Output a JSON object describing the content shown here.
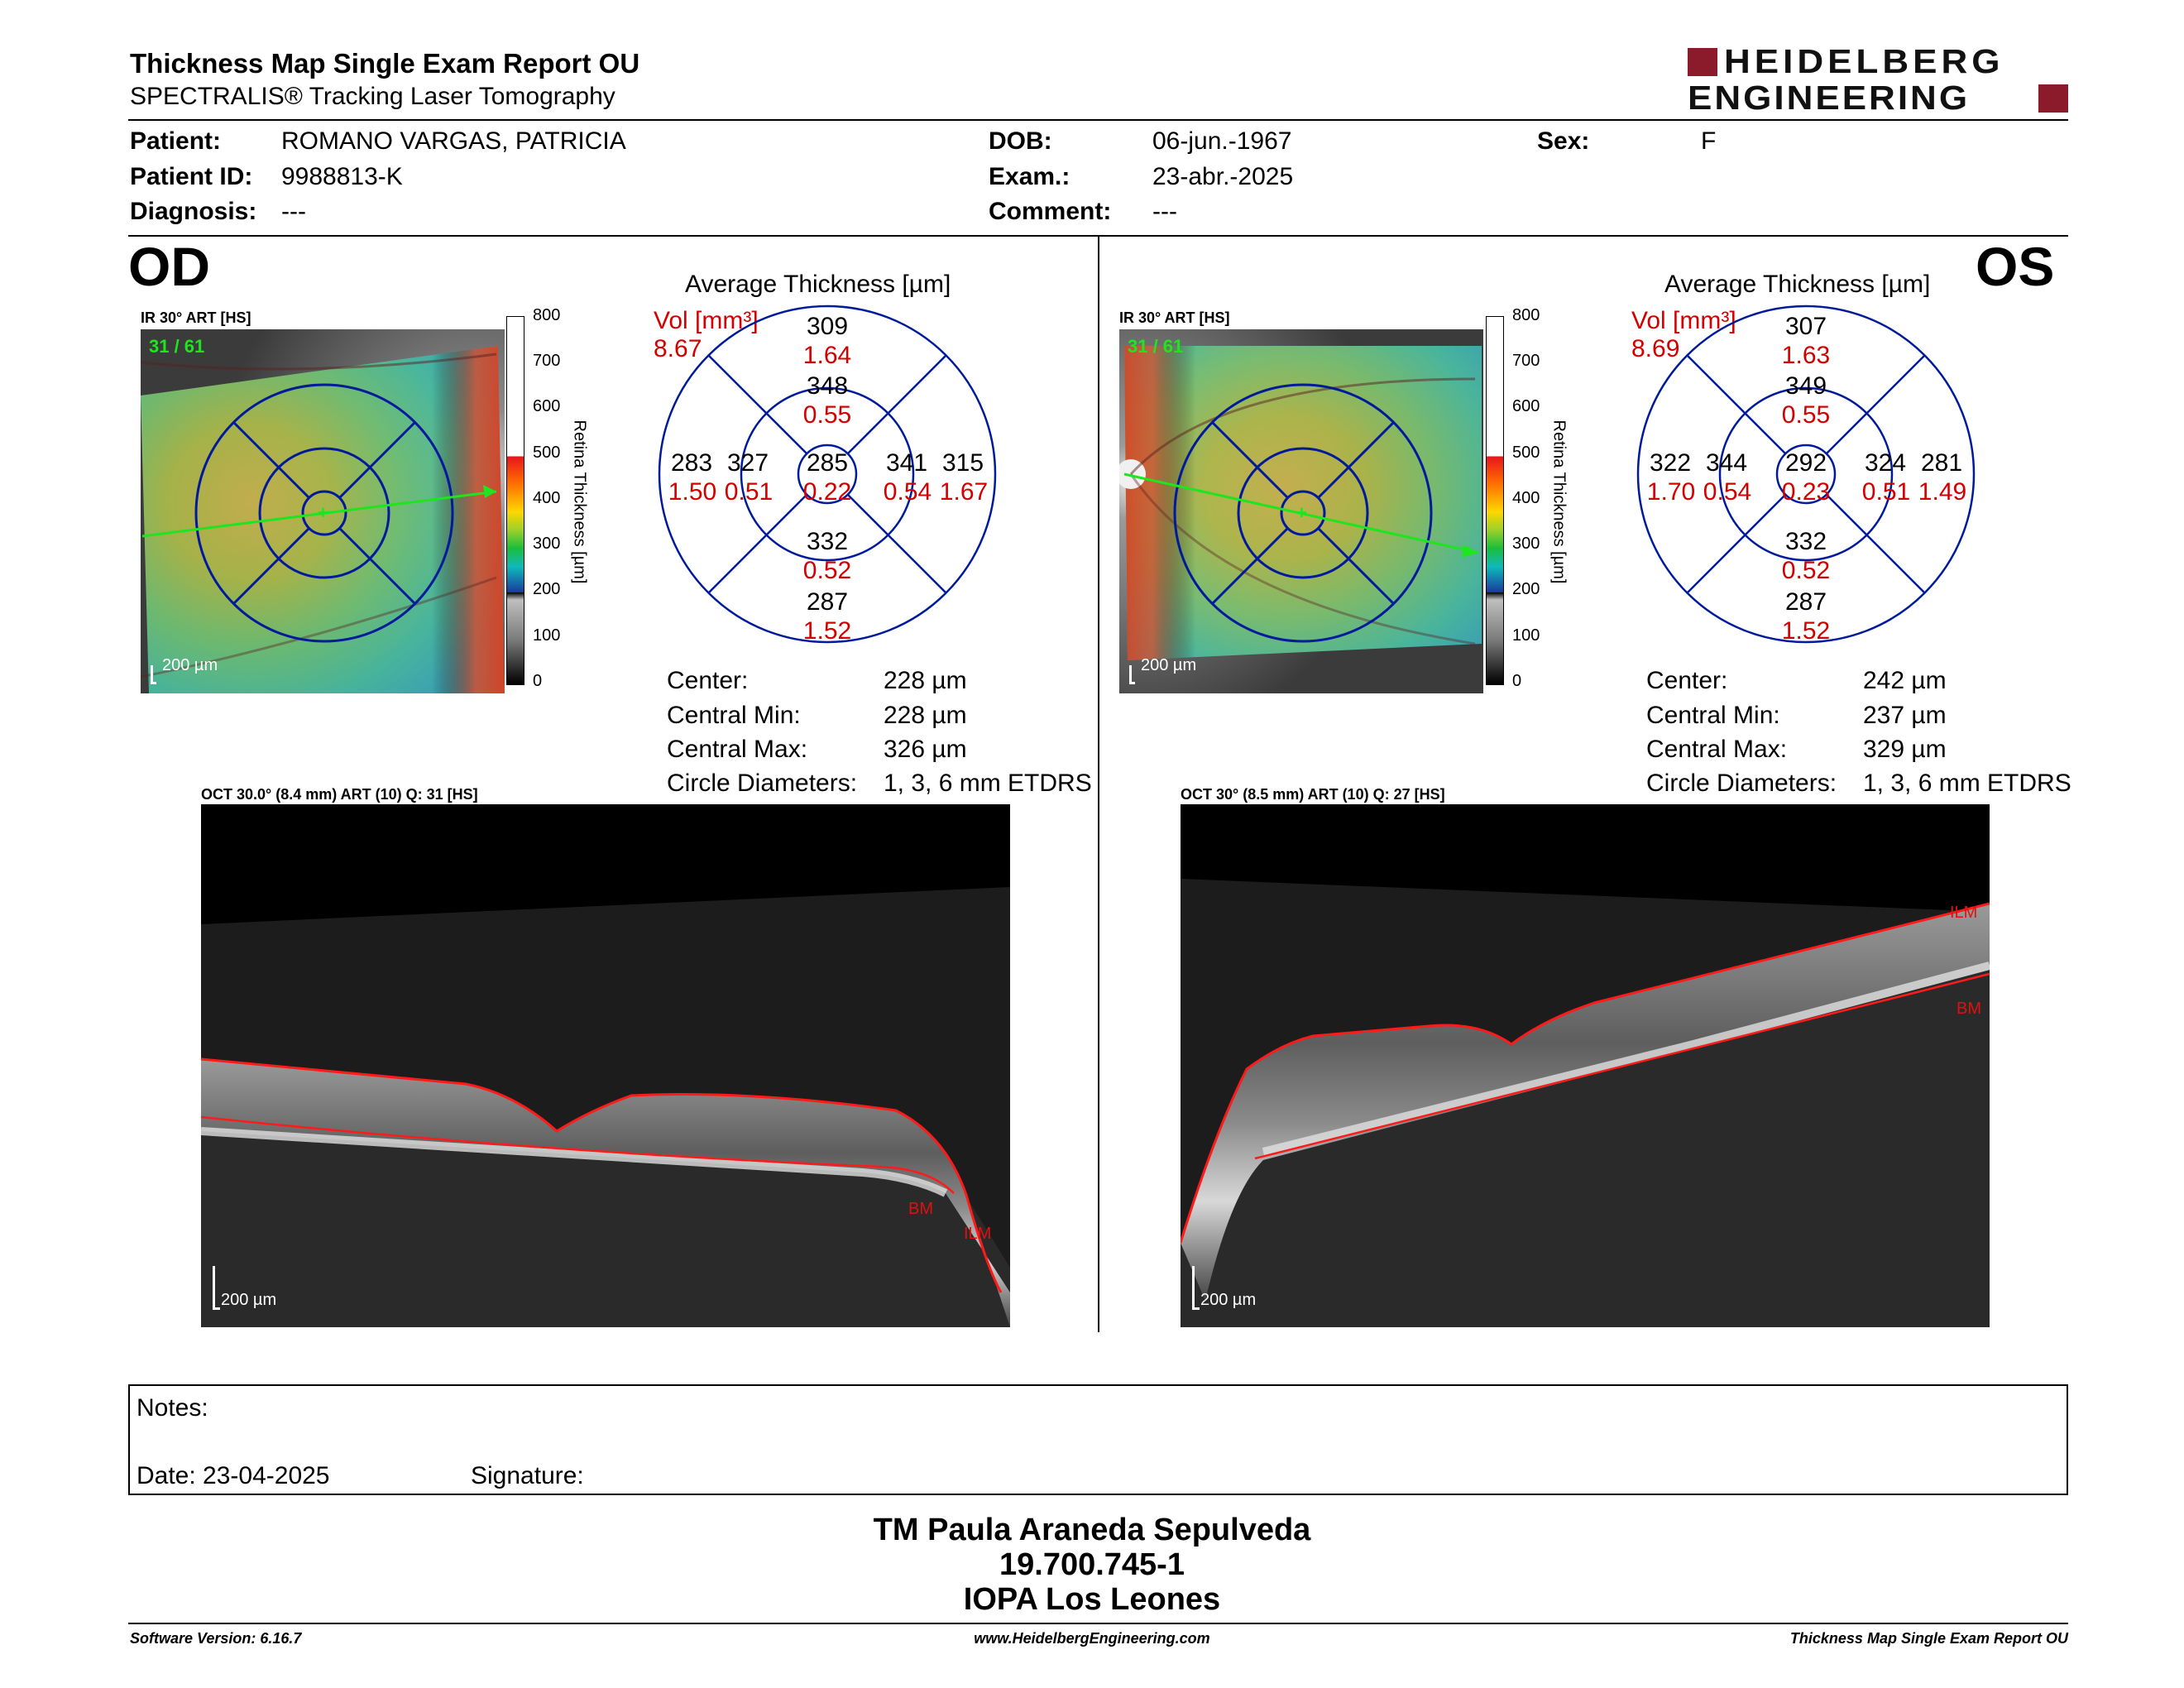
{
  "header": {
    "title": "Thickness Map Single Exam Report OU",
    "subtitle": "SPECTRALIS® Tracking Laser Tomography",
    "logo_line1": "HEIDELBERG",
    "logo_line2": "ENGINEERING",
    "brand_color": "#8b1a2b"
  },
  "patient": {
    "patient_label": "Patient:",
    "patient_value": "ROMANO VARGAS, PATRICIA",
    "id_label": "Patient ID:",
    "id_value": "9988813-K",
    "diag_label": "Diagnosis:",
    "diag_value": "---",
    "dob_label": "DOB:",
    "dob_value": "06-jun.-1967",
    "exam_label": "Exam.:",
    "exam_value": "23-abr.-2025",
    "comment_label": "Comment:",
    "comment_value": "---",
    "sex_label": "Sex:",
    "sex_value": "F"
  },
  "od": {
    "eye": "OD",
    "ir_label": "IR 30° ART [HS]",
    "frames": "31 / 61",
    "scale": "200 µm",
    "colorbar": [
      "800",
      "700",
      "600",
      "500",
      "400",
      "300",
      "200",
      "100",
      "0"
    ],
    "colorbar_title": "Retina Thickness [µm]",
    "avg_title": "Average Thickness [µm]",
    "vol_label": "Vol [mm³]",
    "vol_total": "8.67",
    "sectors": {
      "sup_outer": "309",
      "sup_outer_v": "1.64",
      "sup_inner": "348",
      "sup_inner_v": "0.55",
      "temp_outer": "283",
      "temp_outer_v": "1.50",
      "temp_inner": "327",
      "temp_inner_v": "0.51",
      "center": "285",
      "center_v": "0.22",
      "nas_inner": "341",
      "nas_inner_v": "0.54",
      "nas_outer": "315",
      "nas_outer_v": "1.67",
      "inf_inner": "332",
      "inf_inner_v": "0.52",
      "inf_outer": "287",
      "inf_outer_v": "1.52"
    },
    "stats": {
      "center_label": "Center:",
      "center_value": "228 µm",
      "min_label": "Central Min:",
      "min_value": "228 µm",
      "max_label": "Central Max:",
      "max_value": "326 µm",
      "diam_label": "Circle Diameters:",
      "diam_value": "1, 3, 6 mm ETDRS"
    },
    "oct_label": "OCT 30.0° (8.4 mm) ART (10) Q: 31 [HS]",
    "oct_scale": "200 µm",
    "ilm": "ILM",
    "bm": "BM"
  },
  "os": {
    "eye": "OS",
    "ir_label": "IR 30° ART [HS]",
    "frames": "31 / 61",
    "scale": "200 µm",
    "colorbar": [
      "800",
      "700",
      "600",
      "500",
      "400",
      "300",
      "200",
      "100",
      "0"
    ],
    "colorbar_title": "Retina Thickness [µm]",
    "avg_title": "Average Thickness [µm]",
    "vol_label": "Vol [mm³]",
    "vol_total": "8.69",
    "sectors": {
      "sup_outer": "307",
      "sup_outer_v": "1.63",
      "sup_inner": "349",
      "sup_inner_v": "0.55",
      "temp_outer": "281",
      "temp_outer_v": "1.49",
      "temp_inner": "324",
      "temp_inner_v": "0.51",
      "center": "292",
      "center_v": "0.23",
      "nas_inner": "344",
      "nas_inner_v": "0.54",
      "nas_outer": "322",
      "nas_outer_v": "1.70",
      "inf_inner": "332",
      "inf_inner_v": "0.52",
      "inf_outer": "287",
      "inf_outer_v": "1.52"
    },
    "stats": {
      "center_label": "Center:",
      "center_value": "242 µm",
      "min_label": "Central Min:",
      "min_value": "237 µm",
      "max_label": "Central Max:",
      "max_value": "329 µm",
      "diam_label": "Circle Diameters:",
      "diam_value": "1, 3, 6 mm ETDRS"
    },
    "oct_label": "OCT 30° (8.5 mm) ART (10) Q: 27 [HS]",
    "oct_scale": "200 µm",
    "ilm": "ILM",
    "bm": "BM"
  },
  "notes": {
    "notes_label": "Notes:",
    "date_label": "Date: 23-04-2025",
    "signature_label": "Signature:"
  },
  "signer": {
    "name": "TM Paula Araneda Sepulveda",
    "rut": "19.700.745-1",
    "institution": "IOPA Los Leones"
  },
  "footer": {
    "software": "Software Version: 6.16.7",
    "website": "www.HeidelbergEngineering.com",
    "report": "Thickness Map Single Exam Report OU"
  }
}
